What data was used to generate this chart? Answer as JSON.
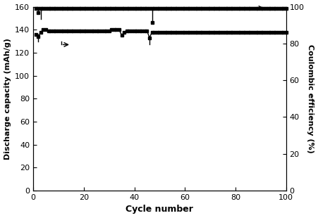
{
  "xlabel": "Cycle number",
  "ylabel_left": "Discharge capacity (mAh/g)",
  "ylabel_right": "Coulombic efficiency (%)",
  "ylim_left": [
    0,
    160
  ],
  "ylim_right": [
    0,
    100
  ],
  "xlim": [
    0,
    100
  ],
  "yticks_left": [
    0,
    20,
    40,
    60,
    80,
    100,
    120,
    140,
    160
  ],
  "yticks_right": [
    0,
    20,
    40,
    60,
    80,
    100
  ],
  "xticks": [
    0,
    20,
    40,
    60,
    80,
    100
  ],
  "discharge_capacity_x": [
    1,
    2,
    3,
    4,
    5,
    6,
    7,
    8,
    9,
    10,
    11,
    12,
    13,
    14,
    15,
    16,
    17,
    18,
    19,
    20,
    21,
    22,
    23,
    24,
    25,
    26,
    27,
    28,
    29,
    30,
    31,
    32,
    33,
    34,
    35,
    36,
    37,
    38,
    39,
    40,
    41,
    42,
    43,
    44,
    45,
    46,
    47,
    48,
    49,
    50,
    51,
    52,
    53,
    54,
    55,
    56,
    57,
    58,
    59,
    60,
    61,
    62,
    63,
    64,
    65,
    66,
    67,
    68,
    69,
    70,
    71,
    72,
    73,
    74,
    75,
    76,
    77,
    78,
    79,
    80,
    81,
    82,
    83,
    84,
    85,
    86,
    87,
    88,
    89,
    90,
    91,
    92,
    93,
    94,
    95,
    96,
    97,
    98,
    99,
    100
  ],
  "discharge_capacity_y": [
    136,
    134,
    138,
    140,
    140,
    139,
    139,
    139,
    139,
    139,
    139,
    139,
    139,
    139,
    139,
    139,
    139,
    139,
    139,
    139,
    139,
    139,
    139,
    139,
    139,
    139,
    139,
    139,
    139,
    139,
    140,
    140,
    140,
    140,
    135,
    138,
    139,
    139,
    139,
    139,
    139,
    139,
    139,
    139,
    139,
    133,
    138,
    138,
    138,
    138,
    138,
    138,
    138,
    138,
    138,
    138,
    138,
    138,
    138,
    138,
    138,
    138,
    138,
    138,
    138,
    138,
    138,
    138,
    138,
    138,
    138,
    138,
    138,
    138,
    138,
    138,
    138,
    138,
    138,
    138,
    138,
    138,
    138,
    138,
    138,
    138,
    138,
    138,
    138,
    138,
    138,
    138,
    138,
    138,
    138,
    138,
    138,
    138,
    138,
    138
  ],
  "coulombic_efficiency_y": [
    99,
    99,
    99,
    99,
    99,
    99,
    99,
    99,
    99,
    99,
    99,
    99,
    99,
    99,
    99,
    99,
    99,
    99,
    99,
    99,
    99,
    99,
    99,
    99,
    99,
    99,
    99,
    99,
    99,
    99,
    99,
    99,
    99,
    99,
    99,
    99,
    99,
    99,
    99,
    99,
    99,
    99,
    99,
    99,
    99,
    99,
    99,
    99,
    99,
    99,
    99,
    99,
    99,
    99,
    99,
    99,
    99,
    99,
    99,
    99,
    99,
    99,
    99,
    99,
    99,
    99,
    99,
    99,
    99,
    99,
    99,
    99,
    99,
    99,
    99,
    99,
    99,
    99,
    99,
    99,
    99,
    99,
    99,
    99,
    99,
    99,
    99,
    99,
    99,
    99,
    99,
    99,
    99,
    99,
    99,
    99,
    99,
    99,
    99,
    99
  ],
  "line_color": "#000000",
  "marker": "s",
  "markersize": 2.5,
  "linewidth": 1.0,
  "bg_color": "#ffffff",
  "font_size": 8,
  "xlabel_fontsize": 9,
  "ylabel_fontsize": 8
}
